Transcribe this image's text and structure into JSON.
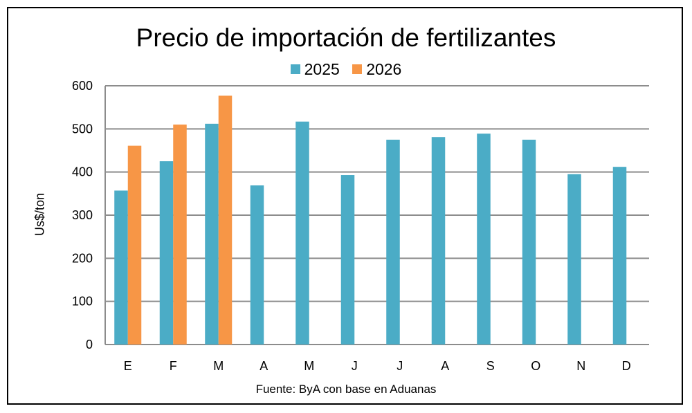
{
  "chart_data": {
    "type": "bar",
    "title": "Precio de importación de fertilizantes",
    "ylabel": "Us$/ton",
    "xlabel": "",
    "source": "Fuente: ByA con base en Aduanas",
    "categories": [
      "E",
      "F",
      "M",
      "A",
      "M",
      "J",
      "J",
      "A",
      "S",
      "O",
      "N",
      "D"
    ],
    "series": [
      {
        "name": "2025",
        "color": "#4bacc6",
        "values": [
          357,
          425,
          512,
          369,
          517,
          393,
          475,
          481,
          489,
          475,
          395,
          412
        ]
      },
      {
        "name": "2026",
        "color": "#f79646",
        "values": [
          461,
          510,
          577,
          null,
          null,
          null,
          null,
          null,
          null,
          null,
          null,
          null
        ]
      }
    ],
    "ylim": [
      0,
      600
    ],
    "yticks": [
      0,
      100,
      200,
      300,
      400,
      500,
      600
    ],
    "grid": true,
    "legend_position": "top-center"
  }
}
